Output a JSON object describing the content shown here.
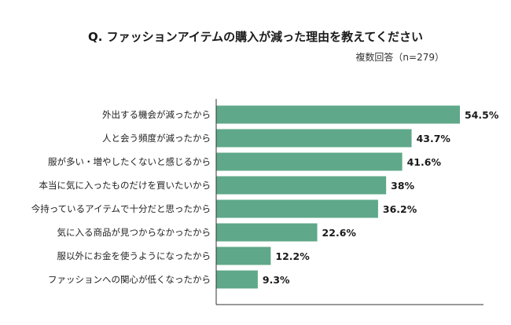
{
  "chart_data": {
    "type": "bar",
    "orientation": "horizontal",
    "title": "Q. ファッションアイテムの購入が減った理由を教えてください",
    "subtitle": "複数回答（n=279）",
    "categories": [
      "外出する機会が減ったから",
      "人と会う頻度が減ったから",
      "服が多い・増やしたくないと感じるから",
      "本当に気に入ったものだけを買いたいから",
      "今持っているアイテムで十分だと思ったから",
      "気に入る商品が見つからなかったから",
      "服以外にお金を使うようになったから",
      "ファッションへの関心が低くなったから"
    ],
    "values": [
      54.5,
      43.7,
      41.6,
      38,
      36.2,
      22.6,
      12.2,
      9.3
    ],
    "value_labels": [
      "54.5%",
      "43.7%",
      "41.6%",
      "38%",
      "36.2%",
      "22.6%",
      "12.2%",
      "9.3%"
    ],
    "xlim": [
      0,
      70
    ],
    "bar_color": "#5fa88a",
    "grid": false
  }
}
